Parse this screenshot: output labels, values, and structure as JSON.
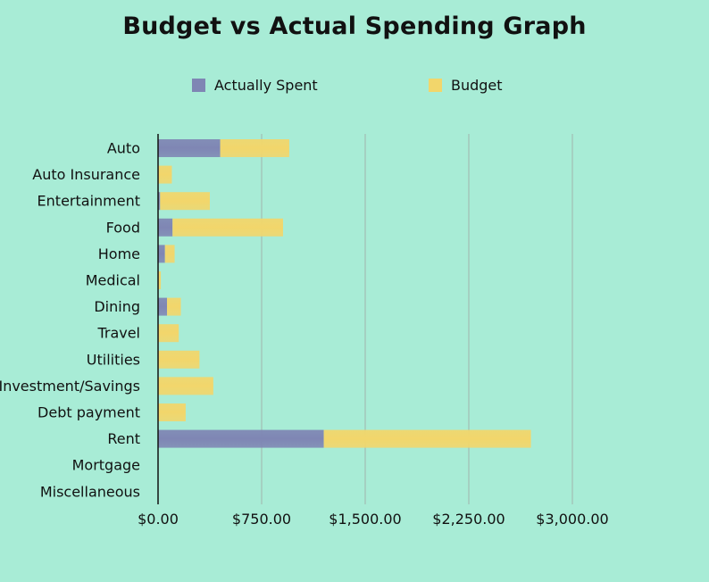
{
  "chart_data": {
    "type": "bar",
    "orientation": "horizontal",
    "stacked": true,
    "title": "Budget vs Actual Spending Graph",
    "categories": [
      "Auto",
      "Auto Insurance",
      "Entertainment",
      "Food",
      "Home",
      "Medical",
      "Dining",
      "Travel",
      "Utilities",
      "Investment/Savings",
      "Debt payment",
      "Rent",
      "Mortgage",
      "Miscellaneous"
    ],
    "series": [
      {
        "name": "Actually Spent",
        "color": "#7f86b4",
        "values": [
          450,
          0,
          15,
          105,
          50,
          0,
          65,
          0,
          0,
          0,
          0,
          1200,
          0,
          0
        ]
      },
      {
        "name": "Budget",
        "color": "#f2d66b",
        "values": [
          500,
          100,
          360,
          800,
          70,
          20,
          100,
          150,
          300,
          400,
          200,
          1500,
          0,
          0
        ]
      }
    ],
    "xlim": [
      0,
      3000
    ],
    "x_ticks": [
      0,
      750,
      1500,
      2250,
      3000
    ],
    "x_tick_labels": [
      "$0.00",
      "$750.00",
      "$1,500.00",
      "$2,250.00",
      "$3,000.00"
    ],
    "grid": "vertical",
    "legend_position": "top"
  }
}
